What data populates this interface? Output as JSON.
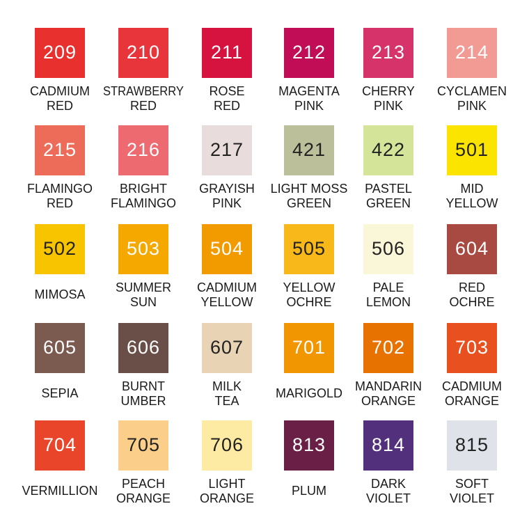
{
  "swatches": [
    {
      "code": "209",
      "name": [
        "CADMIUM",
        "RED"
      ],
      "color": "#e8312f",
      "code_color": "#ffffff"
    },
    {
      "code": "210",
      "name": [
        "STRAWBERRY",
        "RED"
      ],
      "color": "#e8343b",
      "code_color": "#ffffff"
    },
    {
      "code": "211",
      "name": [
        "ROSE",
        "RED"
      ],
      "color": "#d6123f",
      "code_color": "#ffffff"
    },
    {
      "code": "212",
      "name": [
        "MAGENTA",
        "PINK"
      ],
      "color": "#c10d55",
      "code_color": "#ffffff"
    },
    {
      "code": "213",
      "name": [
        "CHERRY",
        "PINK"
      ],
      "color": "#d6336a",
      "code_color": "#ffffff"
    },
    {
      "code": "214",
      "name": [
        "CYCLAMEN",
        "PINK"
      ],
      "color": "#f29a94",
      "code_color": "#ffffff"
    },
    {
      "code": "215",
      "name": [
        "FLAMINGO",
        "RED"
      ],
      "color": "#ec6b59",
      "code_color": "#ffffff"
    },
    {
      "code": "216",
      "name": [
        "BRIGHT",
        "FLAMINGO"
      ],
      "color": "#ec6a70",
      "code_color": "#ffffff"
    },
    {
      "code": "217",
      "name": [
        "GRAYISH",
        "PINK"
      ],
      "color": "#e8dcdc",
      "code_color": "#222222"
    },
    {
      "code": "421",
      "name": [
        "LIGHT MOSS",
        "GREEN"
      ],
      "color": "#bcc09a",
      "code_color": "#222222"
    },
    {
      "code": "422",
      "name": [
        "PASTEL",
        "GREEN"
      ],
      "color": "#d4e59a",
      "code_color": "#222222"
    },
    {
      "code": "501",
      "name": [
        "MID",
        "YELLOW"
      ],
      "color": "#fae400",
      "code_color": "#222222"
    },
    {
      "code": "502",
      "name": [
        "MIMOSA"
      ],
      "color": "#f8c400",
      "code_color": "#222222"
    },
    {
      "code": "503",
      "name": [
        "SUMMER",
        "SUN"
      ],
      "color": "#f4a800",
      "code_color": "#ffffff"
    },
    {
      "code": "504",
      "name": [
        "CADMIUM",
        "YELLOW"
      ],
      "color": "#f19b00",
      "code_color": "#ffffff"
    },
    {
      "code": "505",
      "name": [
        "YELLOW",
        "OCHRE"
      ],
      "color": "#f8b81a",
      "code_color": "#222222"
    },
    {
      "code": "506",
      "name": [
        "PALE",
        "LEMON"
      ],
      "color": "#f9f7d8",
      "code_color": "#222222"
    },
    {
      "code": "604",
      "name": [
        "RED",
        "OCHRE"
      ],
      "color": "#a84a42",
      "code_color": "#ffffff"
    },
    {
      "code": "605",
      "name": [
        "SEPIA"
      ],
      "color": "#7b5a50",
      "code_color": "#ffffff"
    },
    {
      "code": "606",
      "name": [
        "BURNT",
        "UMBER"
      ],
      "color": "#6a4e48",
      "code_color": "#ffffff"
    },
    {
      "code": "607",
      "name": [
        "MILK",
        "TEA"
      ],
      "color": "#e8d3b4",
      "code_color": "#222222"
    },
    {
      "code": "701",
      "name": [
        "MARIGOLD"
      ],
      "color": "#f29600",
      "code_color": "#ffffff"
    },
    {
      "code": "702",
      "name": [
        "MANDARIN",
        "ORANGE"
      ],
      "color": "#e87200",
      "code_color": "#ffffff"
    },
    {
      "code": "703",
      "name": [
        "CADMIUM",
        "ORANGE"
      ],
      "color": "#e9501f",
      "code_color": "#ffffff"
    },
    {
      "code": "704",
      "name": [
        "VERMILLION"
      ],
      "color": "#e8452a",
      "code_color": "#ffffff"
    },
    {
      "code": "705",
      "name": [
        "PEACH",
        "ORANGE"
      ],
      "color": "#fbcf8a",
      "code_color": "#222222"
    },
    {
      "code": "706",
      "name": [
        "LIGHT",
        "ORANGE"
      ],
      "color": "#fdeba3",
      "code_color": "#222222"
    },
    {
      "code": "813",
      "name": [
        "PLUM"
      ],
      "color": "#6a2046",
      "code_color": "#ffffff"
    },
    {
      "code": "814",
      "name": [
        "DARK",
        "VIOLET"
      ],
      "color": "#52307c",
      "code_color": "#ffffff"
    },
    {
      "code": "815",
      "name": [
        "SOFT",
        "VIOLET"
      ],
      "color": "#e0e2ea",
      "code_color": "#222222"
    }
  ]
}
